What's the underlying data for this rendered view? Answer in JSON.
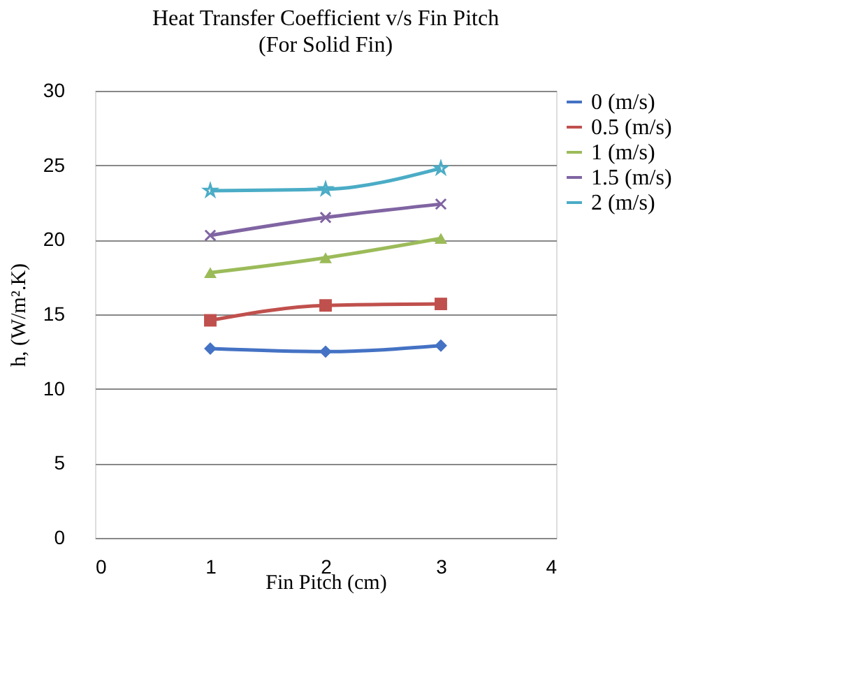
{
  "chart_data": {
    "type": "line",
    "title": "Heat Transfer Coefficient v/s Fin Pitch",
    "subtitle": "(For Solid Fin)",
    "xlabel": "Fin Pitch (cm)",
    "ylabel": "h,  (W/m².K)",
    "x": [
      1,
      2,
      3
    ],
    "xlim": [
      0,
      4
    ],
    "xticks": [
      0,
      1,
      2,
      3,
      4
    ],
    "ylim": [
      0,
      30
    ],
    "yticks": [
      0,
      5,
      10,
      15,
      20,
      25,
      30
    ],
    "grid": "y",
    "legend": "right",
    "line_style": "solid",
    "series": [
      {
        "name": "0 (m/s)",
        "color": "#4472c4",
        "marker": "diamond",
        "values": [
          12.7,
          12.5,
          12.9
        ]
      },
      {
        "name": "0.5 (m/s)",
        "color": "#c0504d",
        "marker": "square",
        "values": [
          14.6,
          15.6,
          15.7
        ]
      },
      {
        "name": "1 (m/s)",
        "color": "#9bbb59",
        "marker": "triangle",
        "values": [
          17.8,
          18.8,
          20.1
        ]
      },
      {
        "name": "1.5 (m/s)",
        "color": "#8064a2",
        "marker": "cross",
        "values": [
          20.3,
          21.5,
          22.4
        ]
      },
      {
        "name": "2 (m/s)",
        "color": "#4bacc6",
        "marker": "star",
        "values": [
          23.3,
          23.4,
          24.8
        ]
      }
    ]
  }
}
